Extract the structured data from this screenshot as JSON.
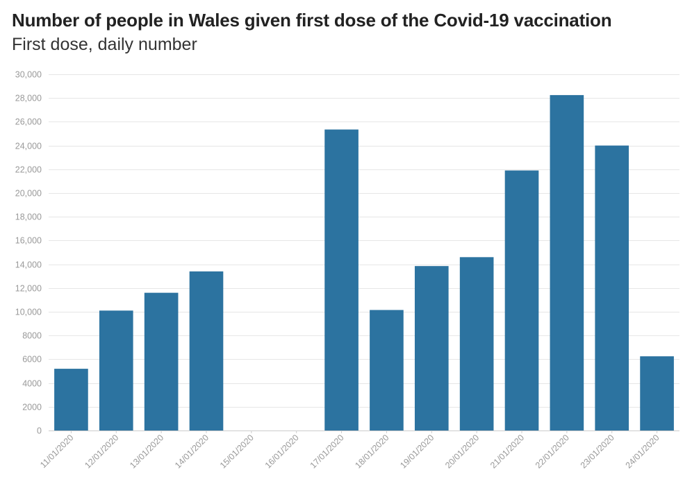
{
  "chart_data": {
    "type": "bar",
    "title": "Number of people in Wales given first dose of the Covid-19 vaccination",
    "subtitle": "First dose, daily number",
    "xlabel": "",
    "ylabel": "",
    "ylim": [
      0,
      30000
    ],
    "yticks": [
      0,
      2000,
      4000,
      6000,
      8000,
      10000,
      12000,
      14000,
      16000,
      18000,
      20000,
      22000,
      24000,
      26000,
      28000,
      30000
    ],
    "ytick_labels": [
      "0",
      "2000",
      "4000",
      "6000",
      "8000",
      "10,000",
      "12,000",
      "14,000",
      "16,000",
      "18,000",
      "20,000",
      "22,000",
      "24,000",
      "26,000",
      "28,000",
      "30,000"
    ],
    "grid": true,
    "categories": [
      "11/01/2020",
      "12/01/2020",
      "13/01/2020",
      "14/01/2020",
      "15/01/2020",
      "16/01/2020",
      "17/01/2020",
      "18/01/2020",
      "19/01/2020",
      "20/01/2020",
      "21/01/2020",
      "22/01/2020",
      "23/01/2020",
      "24/01/2020"
    ],
    "values": [
      5200,
      10100,
      11600,
      13400,
      null,
      null,
      25350,
      10150,
      13850,
      14600,
      21900,
      28250,
      24000,
      6250
    ],
    "colors": {
      "bar": "#2c73a0",
      "grid": "#e6e6e6",
      "axis_text": "#999999"
    }
  }
}
